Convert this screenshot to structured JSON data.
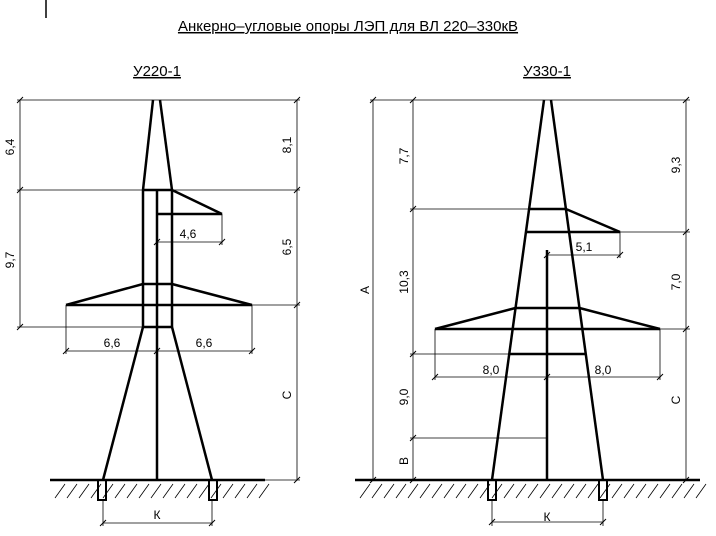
{
  "title": "Анкерно–угловые опоры ЛЭП для ВЛ 220–330кВ",
  "towers": [
    {
      "label": "У220-1",
      "dims": {
        "left_top": "6,4",
        "left_mid": "9,7",
        "right_top": "8,1",
        "right_mid": "6,5",
        "right_low": "C",
        "arm_upper": "4,6",
        "arm_left": "6,6",
        "arm_right": "6,6",
        "base": "К"
      }
    },
    {
      "label": "У330-1",
      "dims": {
        "total": "A",
        "left_top": "7,7",
        "left_mid": "10,3",
        "left_low": "9,0",
        "left_base": "В",
        "right_top": "9,3",
        "right_mid": "7,0",
        "right_low": "C",
        "arm_upper": "5,1",
        "arm_left": "8,0",
        "arm_right": "8,0",
        "base": "К"
      }
    }
  ]
}
